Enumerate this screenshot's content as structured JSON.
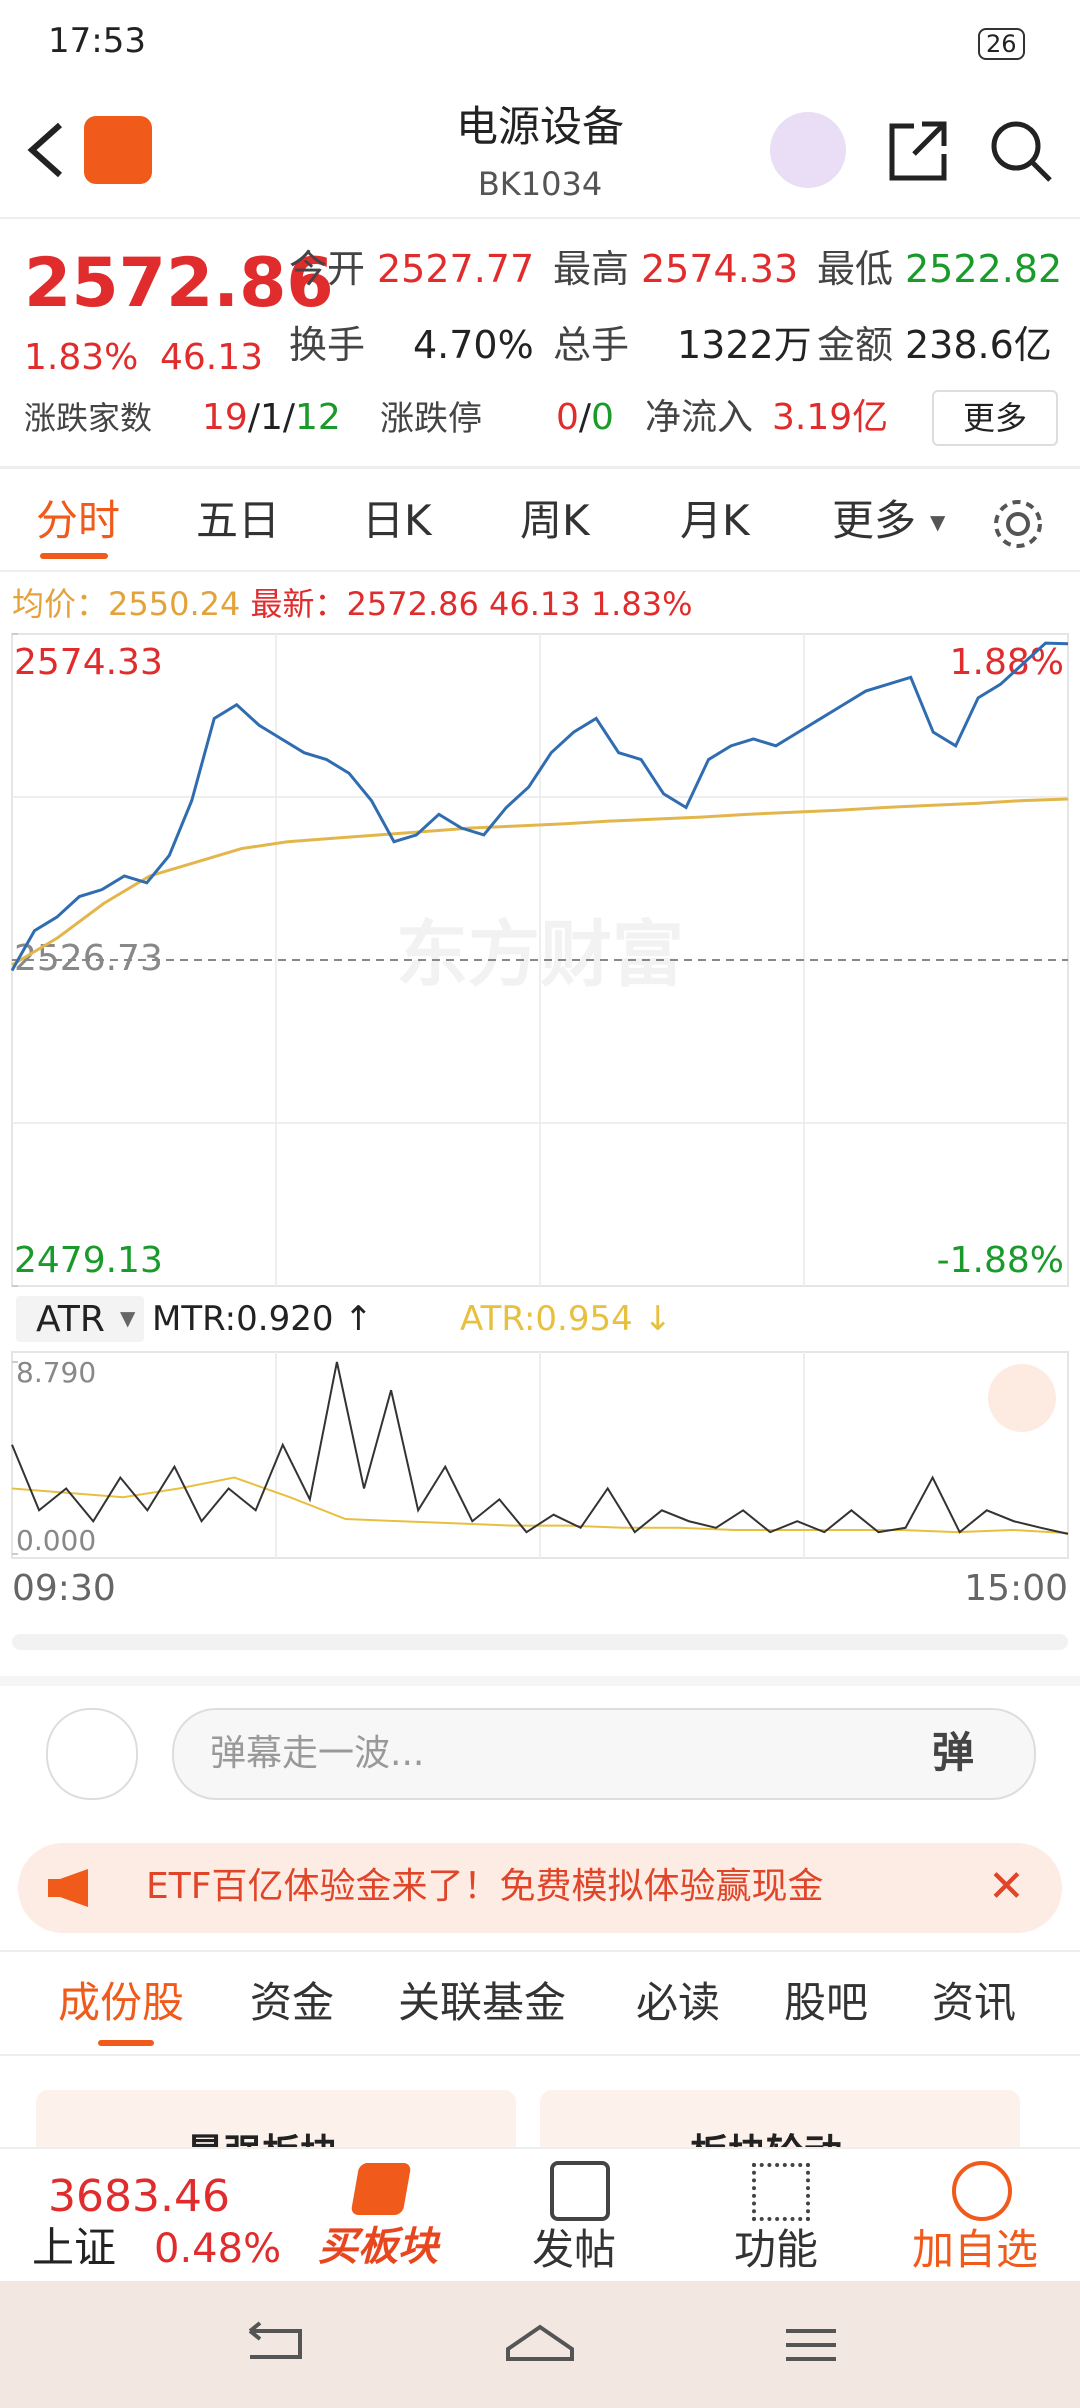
{
  "status": {
    "time": "17:53",
    "battery": "26"
  },
  "header": {
    "title": "电源设备",
    "code": "BK1034"
  },
  "quote": {
    "price": "2572.86",
    "pct": "1.83%",
    "change": "46.13",
    "fields": [
      {
        "label": "今开",
        "value": "2527.77"
      },
      {
        "label": "最高",
        "value": "2574.33"
      },
      {
        "label": "最低",
        "value": "2522.82"
      },
      {
        "label": "换手",
        "value": "4.70%"
      },
      {
        "label": "总手",
        "value": "1322万"
      },
      {
        "label": "金额",
        "value": "238.6亿"
      }
    ],
    "breadth": {
      "label": "涨跌家数",
      "up": "19",
      "flat": "1",
      "down": "12"
    },
    "limit": {
      "label": "涨跌停",
      "up": "0",
      "down": "0"
    },
    "flow": {
      "label": "净流入",
      "value": "3.19亿"
    },
    "more": "更多"
  },
  "tabs": [
    "分时",
    "五日",
    "日K",
    "周K",
    "月K",
    "更多"
  ],
  "summary": {
    "avg_label": "均价：",
    "avg": "2550.24",
    "last_label": "最新：",
    "last": "2572.86",
    "change": "46.13",
    "pct": "1.83%"
  },
  "price_chart": {
    "type": "line",
    "watermark": "东方财富",
    "ylim": [
      2479.13,
      2574.33
    ],
    "yticks": [
      2479.13,
      2526.73,
      2574.33
    ],
    "right_labels": [
      "-1.88%",
      "1.88%"
    ],
    "series": [
      {
        "color": "#2f6db0",
        "values": [
          2525.2,
          2531,
          2533,
          2536,
          2537,
          2539,
          2538,
          2542,
          2550,
          2562,
          2564,
          2561,
          2559,
          2557,
          2556,
          2554,
          2550,
          2544,
          2545,
          2548,
          2546,
          2545,
          2549,
          2552,
          2557,
          2560,
          2562,
          2557,
          2556,
          2551,
          2549,
          2556,
          2558,
          2559,
          2558,
          2560,
          2562,
          2564,
          2566,
          2567,
          2568,
          2560,
          2558,
          2565,
          2567,
          2570,
          2573,
          2572.9
        ]
      },
      {
        "color": "#e3b64c",
        "values": [
          2526,
          2530,
          2535,
          2539,
          2541,
          2543,
          2544,
          2544.5,
          2545,
          2545.5,
          2546,
          2546.3,
          2546.6,
          2547,
          2547.3,
          2547.6,
          2548,
          2548.3,
          2548.6,
          2549,
          2549.3,
          2549.6,
          2550,
          2550.24
        ]
      }
    ]
  },
  "atr_chart": {
    "type": "line",
    "selector": "ATR",
    "ylim": [
      0,
      8.79
    ],
    "yticks": [
      {
        "value": 0,
        "label": "0.000"
      },
      {
        "value": 8.79,
        "label": "8.790"
      }
    ],
    "series": [
      {
        "name": "MTR:0.920",
        "color": "#333333",
        "values": [
          5,
          2,
          3,
          1.5,
          3.5,
          2,
          4,
          1.5,
          3,
          2,
          5,
          2.5,
          8.79,
          3,
          7.5,
          2,
          4,
          1.5,
          2.5,
          1,
          1.8,
          1.2,
          3,
          1,
          2,
          1.5,
          1.2,
          2,
          1,
          1.5,
          1,
          2,
          1,
          1.2,
          3.5,
          1,
          2,
          1.5,
          1.2,
          0.92
        ]
      },
      {
        "name": "ATR:0.954",
        "color": "#e8c040",
        "values": [
          3.0,
          2.8,
          2.6,
          3.0,
          3.5,
          2.6,
          1.6,
          1.5,
          1.4,
          1.3,
          1.3,
          1.2,
          1.2,
          1.1,
          1.1,
          1.1,
          1.1,
          1.0,
          1.1,
          0.954
        ]
      }
    ],
    "xlabels": [
      "09:30",
      "15:00"
    ]
  },
  "danmu": {
    "placeholder": "弹幕走一波...",
    "button": "弹"
  },
  "banner": "ETF百亿体验金来了！免费模拟体验赢现金",
  "tabs2": [
    "成份股",
    "资金",
    "关联基金",
    "必读",
    "股吧",
    "资讯"
  ],
  "cards": [
    "最强板块",
    "板块轮动"
  ],
  "bottom": {
    "index_value": "3683.46",
    "index_name": "上证",
    "index_pct": "0.48%",
    "items": [
      "买板块",
      "发帖",
      "功能",
      "加自选"
    ]
  }
}
